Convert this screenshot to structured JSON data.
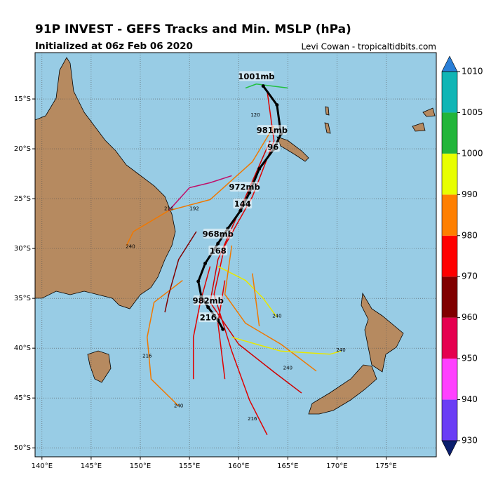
{
  "chart_data": {
    "type": "track-map",
    "title": "91P INVEST - GEFS Tracks and Min. MSLP (hPa)",
    "subtitle": "Initialized at 06z Feb 06 2020",
    "credit": "Levi Cowan - tropicaltidbits.com",
    "xlim": [
      139.3,
      180.1
    ],
    "ylim": [
      -50.9,
      -10.35
    ],
    "xticks": [
      {
        "value": 140,
        "label": "140°E"
      },
      {
        "value": 145,
        "label": "145°E"
      },
      {
        "value": 150,
        "label": "150°E"
      },
      {
        "value": 155,
        "label": "155°E"
      },
      {
        "value": 160,
        "label": "160°E"
      },
      {
        "value": 165,
        "label": "165°E"
      },
      {
        "value": 170,
        "label": "170°E"
      },
      {
        "value": 175,
        "label": "175°E"
      }
    ],
    "yticks": [
      {
        "value": -15,
        "label": "15°S"
      },
      {
        "value": -20,
        "label": "20°S"
      },
      {
        "value": -25,
        "label": "25°S"
      },
      {
        "value": -30,
        "label": "30°S"
      },
      {
        "value": -35,
        "label": "35°S"
      },
      {
        "value": -40,
        "label": "40°S"
      },
      {
        "value": -45,
        "label": "45°S"
      },
      {
        "value": -50,
        "label": "50°S"
      }
    ],
    "colorbar": {
      "ticks": [
        930,
        940,
        950,
        960,
        970,
        980,
        990,
        1000,
        1005,
        1010
      ],
      "colors": [
        "#6a3df5",
        "#ff40ff",
        "#e5004f",
        "#800000",
        "#ff0000",
        "#ff7f00",
        "#e8ff00",
        "#22b53a",
        "#10b5b5"
      ],
      "extend_colors": [
        "#0b1f6e",
        "#2a7fd8"
      ]
    },
    "tracks": [
      {
        "color": "#e00000",
        "lon": [
          162.9,
          163.6,
          161.4,
          158.6,
          157.5,
          159.3,
          161.1,
          162.9
        ],
        "lat": [
          -14.2,
          -19.2,
          -24.8,
          -29.7,
          -34.6,
          -40.3,
          -45.2,
          -48.7
        ]
      },
      {
        "color": "#f07800",
        "lon": [
          163.6,
          161.4,
          157.1,
          152.9,
          149.3,
          148.6
        ],
        "lat": [
          -17.7,
          -21.3,
          -25.1,
          -26.2,
          -28.3,
          -29.7
        ]
      },
      {
        "color": "#d00000",
        "lon": [
          163.2,
          160.4,
          157.9,
          157.1,
          160.0,
          163.6,
          166.4
        ],
        "lat": [
          -19.2,
          -25.5,
          -31.1,
          -35.4,
          -39.6,
          -42.4,
          -44.5
        ]
      },
      {
        "color": "#e8e800",
        "lon": [
          157.9,
          160.7,
          162.5,
          163.9
        ],
        "lat": [
          -31.8,
          -33.2,
          -35.0,
          -36.9
        ]
      },
      {
        "color": "#f07800",
        "lon": [
          159.3,
          158.6,
          160.7,
          164.3,
          167.9
        ],
        "lat": [
          -29.7,
          -34.6,
          -37.5,
          -39.6,
          -42.3
        ]
      },
      {
        "color": "#f07800",
        "lon": [
          154.3,
          151.4,
          150.7,
          151.1,
          153.9
        ],
        "lat": [
          -33.2,
          -35.4,
          -38.9,
          -43.1,
          -45.8
        ]
      },
      {
        "color": "#800000",
        "lon": [
          155.7,
          153.9,
          152.9,
          152.5
        ],
        "lat": [
          -28.3,
          -31.1,
          -34.6,
          -36.4
        ]
      },
      {
        "color": "#c0106a",
        "lon": [
          159.3,
          157.1,
          155.0,
          152.9
        ],
        "lat": [
          -22.7,
          -23.4,
          -23.9,
          -26.2
        ]
      },
      {
        "color": "#e00000",
        "lon": [
          157.1,
          156.1,
          155.4,
          155.4
        ],
        "lat": [
          -31.8,
          -35.4,
          -38.9,
          -43.1
        ]
      },
      {
        "color": "#e00000",
        "lon": [
          158.6,
          157.9,
          158.6
        ],
        "lat": [
          -33.2,
          -37.5,
          -43.1
        ]
      },
      {
        "color": "#e8e800",
        "lon": [
          159.3,
          164.3,
          169.3,
          170.4
        ],
        "lat": [
          -38.9,
          -40.3,
          -40.6,
          -40.3
        ]
      },
      {
        "color": "#22c040",
        "lon": [
          160.7,
          161.8,
          165.0
        ],
        "lat": [
          -13.9,
          -13.5,
          -13.9
        ]
      },
      {
        "color": "#f07800",
        "lon": [
          161.4,
          162.1
        ],
        "lat": [
          -32.5,
          -37.8
        ]
      }
    ],
    "mean_track": {
      "color": "#000000",
      "lon": [
        162.5,
        163.9,
        164.3,
        163.6,
        162.1,
        161.1,
        160.2,
        158.9,
        157.9,
        156.6,
        155.9,
        156.2,
        156.9,
        157.9,
        158.4
      ],
      "lat": [
        -13.7,
        -15.6,
        -18.5,
        -20.0,
        -22.0,
        -24.4,
        -26.2,
        -28.0,
        -29.5,
        -31.5,
        -33.3,
        -34.8,
        -35.9,
        -37.2,
        -38.1
      ]
    },
    "mean_labels": [
      {
        "text": "1001mb",
        "lon": 161.8,
        "lat": -12.7
      },
      {
        "text": "981mb",
        "lon": 163.4,
        "lat": -18.1
      },
      {
        "text": "96",
        "lon": 163.5,
        "lat": -19.8
      },
      {
        "text": "972mb",
        "lon": 160.6,
        "lat": -23.8
      },
      {
        "text": "144",
        "lon": 160.4,
        "lat": -25.5
      },
      {
        "text": "968mb",
        "lon": 157.9,
        "lat": -28.5
      },
      {
        "text": "168",
        "lon": 157.9,
        "lat": -30.2
      },
      {
        "text": "982mb",
        "lon": 156.9,
        "lat": -35.2
      },
      {
        "text": "216",
        "lon": 156.9,
        "lat": -36.9
      }
    ],
    "hour_labels": [
      {
        "text": "240",
        "lon": 170.4,
        "lat": -40.2
      },
      {
        "text": "240",
        "lon": 163.9,
        "lat": -36.8
      },
      {
        "text": "216",
        "lon": 161.4,
        "lat": -47.1
      },
      {
        "text": "240",
        "lon": 153.9,
        "lat": -45.8
      },
      {
        "text": "240",
        "lon": 149.0,
        "lat": -29.8
      },
      {
        "text": "216",
        "lon": 152.9,
        "lat": -26.0
      },
      {
        "text": "240",
        "lon": 165.0,
        "lat": -42.0
      },
      {
        "text": "216",
        "lon": 150.7,
        "lat": -40.8
      },
      {
        "text": "192",
        "lon": 155.5,
        "lat": -26.0
      },
      {
        "text": "120",
        "lon": 161.7,
        "lat": -16.6
      }
    ]
  }
}
